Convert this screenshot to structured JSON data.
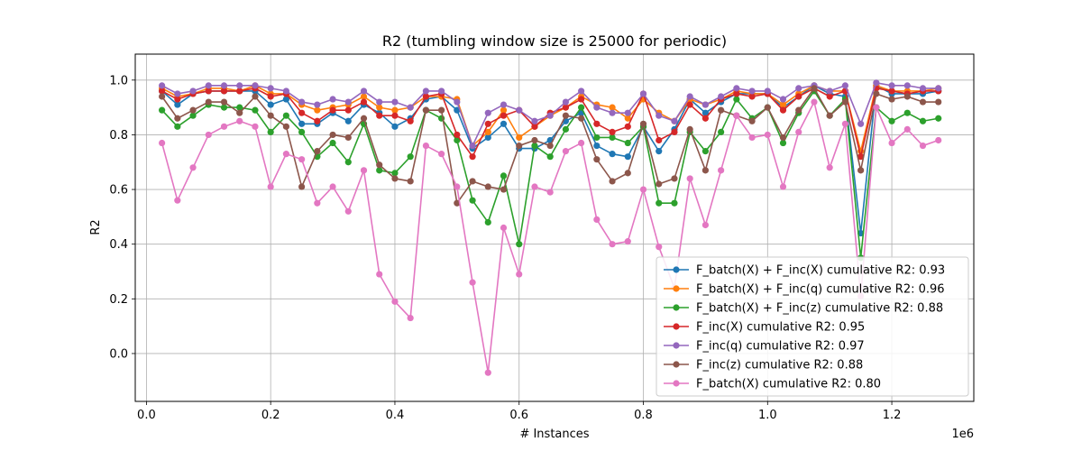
{
  "chart_data": {
    "type": "line",
    "title": "R2 (tumbling window size is 25000 for periodic)",
    "xlabel": "# Instances",
    "ylabel": "R2",
    "x_offset_label": "1e6",
    "xlim": [
      -18000,
      1332000
    ],
    "ylim": [
      -0.175,
      1.095
    ],
    "x_ticks": [
      {
        "value": 0,
        "label": "0.0"
      },
      {
        "value": 200000,
        "label": "0.2"
      },
      {
        "value": 400000,
        "label": "0.4"
      },
      {
        "value": 600000,
        "label": "0.6"
      },
      {
        "value": 800000,
        "label": "0.8"
      },
      {
        "value": 1000000,
        "label": "1.0"
      },
      {
        "value": 1200000,
        "label": "1.2"
      }
    ],
    "y_ticks": [
      {
        "value": 0.0,
        "label": "0.0"
      },
      {
        "value": 0.2,
        "label": "0.2"
      },
      {
        "value": 0.4,
        "label": "0.4"
      },
      {
        "value": 0.6,
        "label": "0.6"
      },
      {
        "value": 0.8,
        "label": "0.8"
      },
      {
        "value": 1.0,
        "label": "1.0"
      }
    ],
    "grid": true,
    "legend_position": "lower right",
    "x": [
      25000,
      50000,
      75000,
      100000,
      125000,
      150000,
      175000,
      200000,
      225000,
      250000,
      275000,
      300000,
      325000,
      350000,
      375000,
      400000,
      425000,
      450000,
      475000,
      500000,
      525000,
      550000,
      575000,
      600000,
      625000,
      650000,
      675000,
      700000,
      725000,
      750000,
      775000,
      800000,
      825000,
      850000,
      875000,
      900000,
      925000,
      950000,
      975000,
      1000000,
      1025000,
      1050000,
      1075000,
      1100000,
      1125000,
      1150000,
      1175000,
      1200000,
      1225000,
      1250000,
      1275000
    ],
    "series": [
      {
        "name": "F_batch(X) + F_inc(X) cumulative R2: 0.93",
        "color": "#1f77b4",
        "values": [
          0.96,
          0.91,
          0.95,
          0.96,
          0.96,
          0.96,
          0.96,
          0.91,
          0.93,
          0.84,
          0.84,
          0.88,
          0.85,
          0.91,
          0.88,
          0.83,
          0.86,
          0.93,
          0.94,
          0.89,
          0.75,
          0.79,
          0.84,
          0.75,
          0.75,
          0.78,
          0.85,
          0.88,
          0.76,
          0.73,
          0.72,
          0.83,
          0.74,
          0.82,
          0.93,
          0.88,
          0.92,
          0.95,
          0.95,
          0.95,
          0.9,
          0.94,
          0.98,
          0.95,
          0.94,
          0.44,
          0.98,
          0.95,
          0.95,
          0.95,
          0.96
        ]
      },
      {
        "name": "F_batch(X) + F_inc(q) cumulative R2: 0.96",
        "color": "#ff7f0e",
        "values": [
          0.97,
          0.94,
          0.95,
          0.97,
          0.97,
          0.96,
          0.98,
          0.95,
          0.95,
          0.91,
          0.89,
          0.9,
          0.91,
          0.94,
          0.9,
          0.89,
          0.9,
          0.94,
          0.94,
          0.93,
          0.76,
          0.81,
          0.89,
          0.79,
          0.83,
          0.87,
          0.9,
          0.94,
          0.91,
          0.9,
          0.86,
          0.93,
          0.88,
          0.85,
          0.93,
          0.91,
          0.93,
          0.96,
          0.95,
          0.95,
          0.91,
          0.95,
          0.98,
          0.96,
          0.96,
          0.74,
          0.98,
          0.96,
          0.96,
          0.96,
          0.97
        ]
      },
      {
        "name": "F_batch(X) + F_inc(z) cumulative R2: 0.88",
        "color": "#2ca02c",
        "values": [
          0.89,
          0.83,
          0.87,
          0.91,
          0.9,
          0.9,
          0.89,
          0.81,
          0.87,
          0.81,
          0.72,
          0.77,
          0.7,
          0.84,
          0.67,
          0.66,
          0.72,
          0.89,
          0.86,
          0.78,
          0.56,
          0.48,
          0.65,
          0.4,
          0.76,
          0.72,
          0.82,
          0.9,
          0.79,
          0.79,
          0.77,
          0.83,
          0.55,
          0.55,
          0.81,
          0.74,
          0.81,
          0.93,
          0.86,
          0.9,
          0.77,
          0.88,
          0.96,
          0.87,
          0.93,
          0.35,
          0.9,
          0.85,
          0.88,
          0.85,
          0.86
        ]
      },
      {
        "name": "F_inc(X) cumulative R2: 0.95",
        "color": "#d62728",
        "values": [
          0.96,
          0.93,
          0.95,
          0.96,
          0.96,
          0.96,
          0.97,
          0.94,
          0.95,
          0.88,
          0.85,
          0.89,
          0.89,
          0.92,
          0.87,
          0.87,
          0.85,
          0.94,
          0.95,
          0.8,
          0.72,
          0.84,
          0.87,
          0.89,
          0.83,
          0.88,
          0.9,
          0.93,
          0.84,
          0.81,
          0.83,
          0.95,
          0.78,
          0.81,
          0.91,
          0.86,
          0.93,
          0.95,
          0.94,
          0.95,
          0.89,
          0.94,
          0.97,
          0.94,
          0.96,
          0.72,
          0.97,
          0.96,
          0.95,
          0.96,
          0.96
        ]
      },
      {
        "name": "F_inc(q) cumulative R2: 0.97",
        "color": "#9467bd",
        "values": [
          0.98,
          0.95,
          0.96,
          0.98,
          0.98,
          0.98,
          0.98,
          0.97,
          0.96,
          0.92,
          0.91,
          0.93,
          0.92,
          0.96,
          0.92,
          0.92,
          0.9,
          0.96,
          0.96,
          0.92,
          0.76,
          0.88,
          0.91,
          0.89,
          0.85,
          0.87,
          0.92,
          0.96,
          0.9,
          0.88,
          0.88,
          0.95,
          0.87,
          0.85,
          0.94,
          0.91,
          0.94,
          0.97,
          0.96,
          0.96,
          0.93,
          0.97,
          0.98,
          0.96,
          0.98,
          0.84,
          0.99,
          0.98,
          0.98,
          0.97,
          0.97
        ]
      },
      {
        "name": "F_inc(z) cumulative R2: 0.88",
        "color": "#8c564b",
        "values": [
          0.94,
          0.86,
          0.89,
          0.92,
          0.92,
          0.88,
          0.94,
          0.87,
          0.83,
          0.61,
          0.74,
          0.8,
          0.79,
          0.86,
          0.69,
          0.64,
          0.63,
          0.89,
          0.89,
          0.55,
          0.63,
          0.61,
          0.6,
          0.76,
          0.78,
          0.76,
          0.87,
          0.86,
          0.71,
          0.63,
          0.66,
          0.84,
          0.62,
          0.64,
          0.82,
          0.67,
          0.89,
          0.87,
          0.85,
          0.9,
          0.79,
          0.89,
          0.97,
          0.87,
          0.92,
          0.67,
          0.95,
          0.93,
          0.94,
          0.92,
          0.92
        ]
      },
      {
        "name": "F_batch(X) cumulative R2: 0.80",
        "color": "#e377c2",
        "values": [
          0.77,
          0.56,
          0.68,
          0.8,
          0.83,
          0.85,
          0.83,
          0.61,
          0.73,
          0.71,
          0.55,
          0.61,
          0.52,
          0.67,
          0.29,
          0.19,
          0.13,
          0.76,
          0.73,
          0.61,
          0.26,
          -0.07,
          0.46,
          0.29,
          0.61,
          0.59,
          0.74,
          0.77,
          0.49,
          0.4,
          0.41,
          0.6,
          0.39,
          0.24,
          0.64,
          0.47,
          0.67,
          0.87,
          0.79,
          0.8,
          0.61,
          0.81,
          0.92,
          0.68,
          0.84,
          0.21,
          0.9,
          0.77,
          0.82,
          0.76,
          0.78
        ]
      }
    ]
  }
}
